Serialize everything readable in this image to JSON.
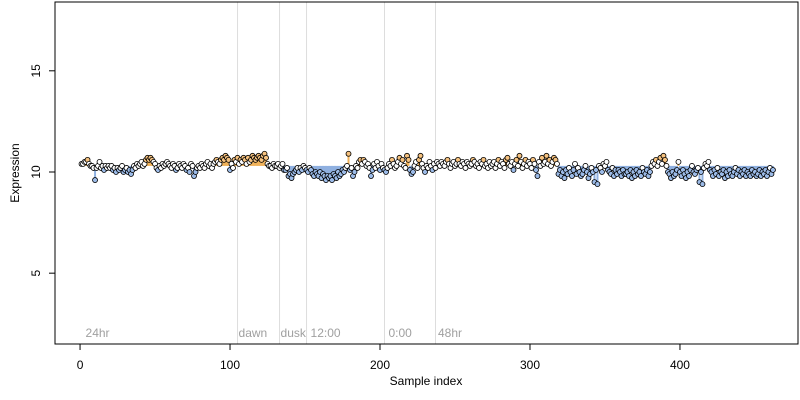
{
  "chart_data": {
    "type": "scatter",
    "x_label": "Sample index",
    "y_label": "Expression",
    "xlim": [
      -16.7,
      478.7
    ],
    "ylim": [
      1.5,
      18.4
    ],
    "xticks": [
      0,
      100,
      200,
      300,
      400
    ],
    "yticks": [
      5,
      10,
      15
    ],
    "baseline": 10.3,
    "colors": {
      "above": "#f6c27f",
      "below": "#9cbbe8",
      "near": "#ffffff",
      "bar_above": "#f0b25a",
      "bar_below": "#8fb0e0",
      "guide": "#dddddd",
      "annotation": "#a0a0a0"
    },
    "vlines": [
      105,
      133,
      151,
      203,
      237
    ],
    "annotations": [
      {
        "x": 3,
        "label": "24hr"
      },
      {
        "x": 105,
        "label": "dawn"
      },
      {
        "x": 133,
        "label": "dusk"
      },
      {
        "x": 153,
        "label": "12:00"
      },
      {
        "x": 205,
        "label": "0:00"
      },
      {
        "x": 238,
        "label": "48hr"
      }
    ],
    "x": [
      1,
      2,
      3,
      4,
      5,
      6,
      7,
      8,
      9,
      10,
      11,
      12,
      13,
      14,
      15,
      16,
      17,
      18,
      19,
      20,
      21,
      22,
      23,
      24,
      25,
      26,
      27,
      28,
      29,
      30,
      31,
      32,
      33,
      34,
      35,
      36,
      37,
      38,
      39,
      40,
      41,
      42,
      43,
      44,
      45,
      46,
      47,
      48,
      49,
      50,
      51,
      52,
      53,
      54,
      55,
      56,
      57,
      58,
      59,
      60,
      61,
      62,
      63,
      64,
      65,
      66,
      67,
      68,
      69,
      70,
      71,
      72,
      73,
      74,
      75,
      76,
      77,
      78,
      79,
      80,
      81,
      82,
      83,
      84,
      85,
      86,
      87,
      88,
      89,
      90,
      91,
      92,
      93,
      94,
      95,
      96,
      97,
      98,
      99,
      100,
      101,
      102,
      103,
      104,
      105,
      106,
      107,
      108,
      109,
      110,
      111,
      112,
      113,
      114,
      115,
      116,
      117,
      118,
      119,
      120,
      121,
      122,
      123,
      124,
      125,
      126,
      127,
      128,
      129,
      130,
      131,
      132,
      133,
      134,
      135,
      136,
      137,
      138,
      139,
      140,
      141,
      142,
      143,
      144,
      145,
      146,
      147,
      148,
      149,
      150,
      151,
      152,
      153,
      154,
      155,
      156,
      157,
      158,
      159,
      160,
      161,
      162,
      163,
      164,
      165,
      166,
      167,
      168,
      169,
      170,
      171,
      172,
      173,
      174,
      175,
      176,
      177,
      178,
      179,
      180,
      181,
      182,
      183,
      184,
      185,
      186,
      187,
      188,
      189,
      190,
      191,
      192,
      193,
      194,
      195,
      196,
      197,
      198,
      199,
      200,
      201,
      202,
      203,
      204,
      205,
      206,
      207,
      208,
      209,
      210,
      211,
      212,
      213,
      214,
      215,
      216,
      217,
      218,
      219,
      220,
      221,
      222,
      223,
      224,
      225,
      226,
      227,
      228,
      229,
      230,
      231,
      232,
      233,
      234,
      235,
      236,
      237,
      238,
      239,
      240,
      241,
      242,
      243,
      244,
      245,
      246,
      247,
      248,
      249,
      250,
      251,
      252,
      253,
      254,
      255,
      256,
      257,
      258,
      259,
      260,
      261,
      262,
      263,
      264,
      265,
      266,
      267,
      268,
      269,
      270,
      271,
      272,
      273,
      274,
      275,
      276,
      277,
      278,
      279,
      280,
      281,
      282,
      283,
      284,
      285,
      286,
      287,
      288,
      289,
      290,
      291,
      292,
      293,
      294,
      295,
      296,
      297,
      298,
      299,
      300,
      301,
      302,
      303,
      304,
      305,
      306,
      307,
      308,
      309,
      310,
      311,
      312,
      313,
      314,
      315,
      316,
      317,
      318,
      319,
      320,
      321,
      322,
      323,
      324,
      325,
      326,
      327,
      328,
      329,
      330,
      331,
      332,
      333,
      334,
      335,
      336,
      337,
      338,
      339,
      340,
      341,
      342,
      343,
      344,
      345,
      346,
      347,
      348,
      349,
      350,
      351,
      352,
      353,
      354,
      355,
      356,
      357,
      358,
      359,
      360,
      361,
      362,
      363,
      364,
      365,
      366,
      367,
      368,
      369,
      370,
      371,
      372,
      373,
      374,
      375,
      376,
      377,
      378,
      379,
      380,
      381,
      382,
      383,
      384,
      385,
      386,
      387,
      388,
      389,
      390,
      391,
      392,
      393,
      394,
      395,
      396,
      397,
      398,
      399,
      400,
      401,
      402,
      403,
      404,
      405,
      406,
      407,
      408,
      409,
      410,
      411,
      412,
      413,
      414,
      415,
      416,
      417,
      418,
      419,
      420,
      421,
      422,
      423,
      424,
      425,
      426,
      427,
      428,
      429,
      430,
      431,
      432,
      433,
      434,
      435,
      436,
      437,
      438,
      439,
      440,
      441,
      442,
      443,
      444,
      445,
      446,
      447,
      448,
      449,
      450,
      451,
      452,
      453,
      454,
      455,
      456,
      457,
      458,
      459,
      460,
      461,
      462
    ],
    "values": [
      10.4,
      10.4,
      10.5,
      10.5,
      10.6,
      10.4,
      10.3,
      10.3,
      10.2,
      9.6,
      10.2,
      10.3,
      10.5,
      10.2,
      10.3,
      10.1,
      10.3,
      10.2,
      10.3,
      10.2,
      10.3,
      10.1,
      10.2,
      10.0,
      10.2,
      10.1,
      10.2,
      10.3,
      10.0,
      10.1,
      10.2,
      10.0,
      10.1,
      9.9,
      10.1,
      10.3,
      10.2,
      10.4,
      10.3,
      10.4,
      10.5,
      10.3,
      10.4,
      10.6,
      10.7,
      10.6,
      10.7,
      10.6,
      10.5,
      10.4,
      10.2,
      10.1,
      10.3,
      10.2,
      10.4,
      10.3,
      10.4,
      10.5,
      10.4,
      10.3,
      10.2,
      10.4,
      10.3,
      10.1,
      10.2,
      10.4,
      10.3,
      10.2,
      10.4,
      10.3,
      10.1,
      10.2,
      10.0,
      10.4,
      10.3,
      9.8,
      10.0,
      10.2,
      10.3,
      10.2,
      10.4,
      10.3,
      10.2,
      10.4,
      10.5,
      10.3,
      10.4,
      10.2,
      10.4,
      10.5,
      10.6,
      10.5,
      10.4,
      10.6,
      10.7,
      10.6,
      10.8,
      10.7,
      10.6,
      10.1,
      10.4,
      10.2,
      10.6,
      10.5,
      10.7,
      10.4,
      10.6,
      10.5,
      10.7,
      10.6,
      10.4,
      10.7,
      10.5,
      10.6,
      10.8,
      10.7,
      10.6,
      10.7,
      10.8,
      10.7,
      10.6,
      10.8,
      10.9,
      10.7,
      10.4,
      10.3,
      10.3,
      10.2,
      10.4,
      10.3,
      10.3,
      10.4,
      10.2,
      10.3,
      10.4,
      10.1,
      10.1,
      10.2,
      9.8,
      9.9,
      9.7,
      9.9,
      10.0,
      10.1,
      10.2,
      10.0,
      10.2,
      10.1,
      10.3,
      10.2,
      10.1,
      10.0,
      10.2,
      10.1,
      9.9,
      9.8,
      10.0,
      9.9,
      9.8,
      10.0,
      9.7,
      9.9,
      9.8,
      9.6,
      9.8,
      9.7,
      9.8,
      9.6,
      9.9,
      9.8,
      9.7,
      10.0,
      9.8,
      9.9,
      10.1,
      10.0,
      10.2,
      10.3,
      10.9,
      10.1,
      10.2,
      9.8,
      10.0,
      10.3,
      10.2,
      10.5,
      10.6,
      10.4,
      10.6,
      10.5,
      10.3,
      10.4,
      10.2,
      9.8,
      10.1,
      10.4,
      10.2,
      10.5,
      10.3,
      10.1,
      10.4,
      10.2,
      10.1,
      10.0,
      10.2,
      10.4,
      10.3,
      10.6,
      10.4,
      10.2,
      10.3,
      10.5,
      10.7,
      10.4,
      10.6,
      10.3,
      10.2,
      10.8,
      10.6,
      10.1,
      9.9,
      10.0,
      10.3,
      10.5,
      10.2,
      10.6,
      10.8,
      10.4,
      10.2,
      10.0,
      10.3,
      10.2,
      10.5,
      10.3,
      10.1,
      10.4,
      10.2,
      10.5,
      10.4,
      10.3,
      10.5,
      10.4,
      10.3,
      10.5,
      10.6,
      10.4,
      10.2,
      10.4,
      10.5,
      10.3,
      10.4,
      10.6,
      10.4,
      10.3,
      10.5,
      10.4,
      10.2,
      10.5,
      10.4,
      10.3,
      10.4,
      10.6,
      10.5,
      10.3,
      10.4,
      10.2,
      10.5,
      10.4,
      10.6,
      10.3,
      10.4,
      10.2,
      10.5,
      10.3,
      10.4,
      10.5,
      10.2,
      10.4,
      10.6,
      10.3,
      10.5,
      10.4,
      10.2,
      10.6,
      10.7,
      10.4,
      10.3,
      10.5,
      10.1,
      10.4,
      10.6,
      10.3,
      10.8,
      10.5,
      10.2,
      10.4,
      10.6,
      10.3,
      10.5,
      10.4,
      10.2,
      10.6,
      10.4,
      10.1,
      9.8,
      10.5,
      10.3,
      10.7,
      10.4,
      10.5,
      10.8,
      10.4,
      10.6,
      10.3,
      10.5,
      10.7,
      10.6,
      10.4,
      9.9,
      10.1,
      9.8,
      10.0,
      9.7,
      10.1,
      9.9,
      10.2,
      10.0,
      9.8,
      10.1,
      10.4,
      9.9,
      10.2,
      10.0,
      9.8,
      9.9,
      10.1,
      10.3,
      10.0,
      9.7,
      9.9,
      10.2,
      10.0,
      9.5,
      10.1,
      9.4,
      10.3,
      10.2,
      10.0,
      10.4,
      10.3,
      10.5,
      10.1,
      10.0,
      9.9,
      10.2,
      9.8,
      10.1,
      9.9,
      10.1,
      10.0,
      9.8,
      10.1,
      9.9,
      9.9,
      10.0,
      9.8,
      10.1,
      9.7,
      10.0,
      9.8,
      10.1,
      9.9,
      10.0,
      9.8,
      10.2,
      10.0,
      9.9,
      10.1,
      9.8,
      10.0,
      10.3,
      10.5,
      10.4,
      10.6,
      10.3,
      10.5,
      10.7,
      10.4,
      10.8,
      10.6,
      10.3,
      10.0,
      9.9,
      9.7,
      10.0,
      9.8,
      9.9,
      10.1,
      10.5,
      10.0,
      9.8,
      10.1,
      9.9,
      9.7,
      10.0,
      9.8,
      10.1,
      10.3,
      10.0,
      9.9,
      10.1,
      10.2,
      9.5,
      10.0,
      9.4,
      10.2,
      10.4,
      10.3,
      10.5,
      10.1,
      10.0,
      9.8,
      10.1,
      9.9,
      10.2,
      9.8,
      10.0,
      9.9,
      10.1,
      9.7,
      10.0,
      9.8,
      10.1,
      9.9,
      9.8,
      10.0,
      10.2,
      9.9,
      10.1,
      9.8,
      10.0,
      9.9,
      10.1,
      9.8,
      10.0,
      9.9,
      9.8,
      10.1,
      9.9,
      10.0,
      9.8,
      9.9,
      10.1,
      9.8,
      10.0,
      9.9,
      10.1,
      9.8,
      10.0,
      10.2,
      9.9,
      10.1
    ]
  }
}
